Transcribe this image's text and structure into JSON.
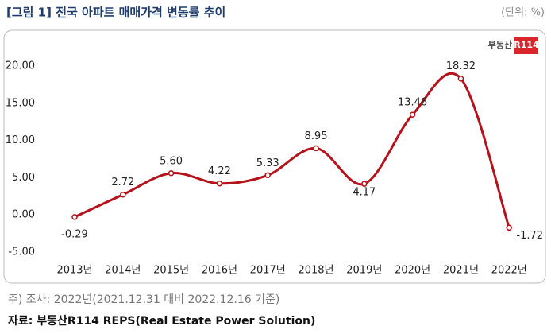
{
  "chart_data": {
    "type": "line",
    "title": "[그림 1] 전국 아파트 매매가격 변동률 추이",
    "unit_note": "(단위: %)",
    "logo": {
      "text": "부동산",
      "badge": "R114"
    },
    "categories": [
      "2013년",
      "2014년",
      "2015년",
      "2016년",
      "2017년",
      "2018년",
      "2019년",
      "2020년",
      "2021년",
      "2022년"
    ],
    "series": [
      {
        "color": "#b5121b",
        "values": [
          -0.29,
          2.72,
          5.6,
          4.22,
          5.33,
          8.95,
          4.17,
          13.46,
          18.32,
          -1.72
        ],
        "value_labels": [
          "-0.29",
          "2.72",
          "5.60",
          "4.22",
          "5.33",
          "8.95",
          "4.17",
          "13.46",
          "18.32",
          "-1.72"
        ]
      }
    ],
    "ylim": [
      -5,
      20
    ],
    "yticks": [
      {
        "value": -5,
        "label": "-5.00"
      },
      {
        "value": 0,
        "label": "0.00"
      },
      {
        "value": 5,
        "label": "5.00"
      },
      {
        "value": 10,
        "label": "10.00"
      },
      {
        "value": 15,
        "label": "15.00"
      },
      {
        "value": 20,
        "label": "20.00"
      }
    ],
    "smooth": true,
    "grid": false,
    "note": "주) 조사: 2022년(2021.12.31 대비 2022.12.16 기준)",
    "source": "자료: 부동산R114 REPS(Real Estate Power Solution)"
  }
}
